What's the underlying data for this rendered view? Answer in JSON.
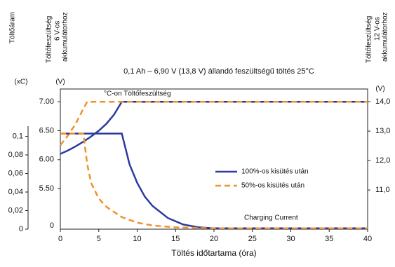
{
  "chart_data": {
    "type": "line",
    "title": "0,1 Ah – 6,90 V (13,8 V) állandó feszültségű töltés 25°C",
    "xlabel": "Töltés időtartama (óra)",
    "y_title": [
      "Töltőáram"
    ],
    "y_unit": "(xC)",
    "y2_title": [
      "Töltőfeszültség",
      "6 V-os",
      "akkumulátorhoz"
    ],
    "y2_unit": "(V)",
    "y3_title": [
      "Töltőfeszültség",
      "12 V-os",
      "akkumulátorhoz"
    ],
    "y3_unit": "(V)",
    "y2_axis_break_label": "0",
    "annotations": [
      "°C-on Töltőfeszültség",
      "Charging Current"
    ],
    "xlim": [
      0,
      40
    ],
    "xticks": [
      0,
      5,
      10,
      15,
      20,
      25,
      30,
      35,
      40
    ],
    "ylim": [
      0,
      0.151
    ],
    "yticks": [
      0,
      {
        "value": 0.02,
        "label": "0,02"
      },
      {
        "value": 0.04,
        "label": "0,04"
      },
      {
        "value": 0.06,
        "label": "0,06"
      },
      {
        "value": 0.08,
        "label": "0,08"
      },
      {
        "value": 0.1,
        "label": "0,1"
      }
    ],
    "y2lim": [
      4.8,
      7.22
    ],
    "y2ticks": [
      {
        "value": 5.5,
        "label": "5.50"
      },
      {
        "value": 6,
        "label": "6.00"
      },
      {
        "value": 6.5,
        "label": "6.50"
      },
      {
        "value": 7,
        "label": "7.00"
      }
    ],
    "y3lim": [
      9.67,
      14.43
    ],
    "y3ticks": [
      {
        "value": 11,
        "label": "11,0"
      },
      {
        "value": 12,
        "label": "12,0"
      },
      {
        "value": 13,
        "label": "13,0"
      },
      {
        "value": 14,
        "label": "14,0"
      }
    ],
    "series": [
      {
        "name": "100%-os kisütés után",
        "color": "#2e3a9e",
        "dashed": false,
        "axis": "y2",
        "x": [
          0,
          1,
          2,
          3,
          4,
          5,
          6,
          7,
          8,
          40
        ],
        "values": [
          6.1,
          6.16,
          6.23,
          6.31,
          6.4,
          6.5,
          6.62,
          6.78,
          7.0,
          7.0
        ]
      },
      {
        "name": "50%-os kisütés után",
        "color": "#f0922a",
        "dashed": true,
        "axis": "y2",
        "x": [
          0,
          1,
          2,
          3,
          3.5,
          40
        ],
        "values": [
          6.25,
          6.42,
          6.62,
          6.88,
          7.0,
          7.0
        ]
      },
      {
        "color": "#2e3a9e",
        "dashed": false,
        "axis": "y",
        "x": [
          0,
          8,
          9,
          10,
          11,
          12,
          14,
          16,
          18,
          20,
          40
        ],
        "values": [
          0.103,
          0.103,
          0.07,
          0.05,
          0.035,
          0.025,
          0.012,
          0.005,
          0.002,
          0.001,
          0.001
        ]
      },
      {
        "color": "#f0922a",
        "dashed": true,
        "axis": "y",
        "x": [
          0,
          3,
          3.5,
          4,
          5,
          6,
          8,
          10,
          12,
          15,
          20,
          40
        ],
        "values": [
          0.103,
          0.103,
          0.07,
          0.05,
          0.033,
          0.024,
          0.013,
          0.007,
          0.004,
          0.002,
          0.001,
          0.001
        ]
      }
    ]
  }
}
